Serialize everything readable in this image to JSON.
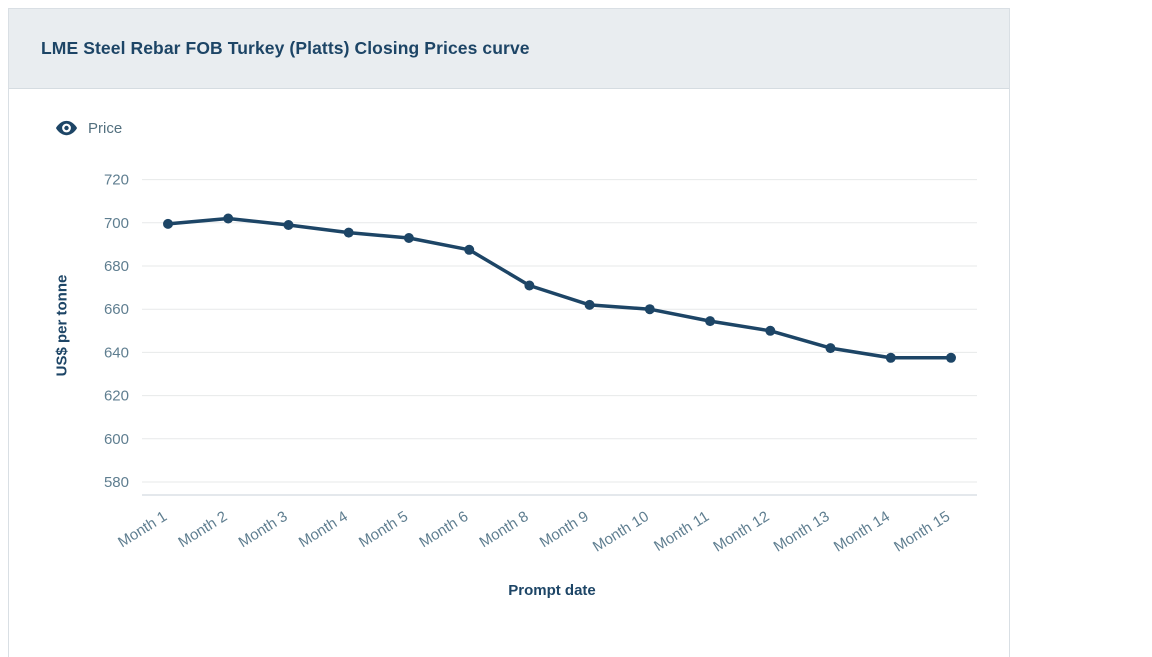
{
  "header": {
    "title": "LME Steel Rebar FOB Turkey (Platts) Closing Prices curve"
  },
  "legend": {
    "label": "Price",
    "icon": "eye-icon"
  },
  "theme": {
    "header_bg": "#e9edf0",
    "card_border": "#d9dfe4",
    "title_color": "#1d4566",
    "legend_text": "#53707f"
  },
  "chart_data": {
    "type": "line",
    "title": "LME Steel Rebar FOB Turkey (Platts) Closing Prices curve",
    "xlabel": "Prompt date",
    "ylabel": "US$ per tonne",
    "categories": [
      "Month 1",
      "Month 2",
      "Month 3",
      "Month 4",
      "Month 5",
      "Month 6",
      "Month 8",
      "Month 9",
      "Month 10",
      "Month 11",
      "Month 12",
      "Month 13",
      "Month 14",
      "Month 15"
    ],
    "series": [
      {
        "name": "Price",
        "values": [
          699.5,
          702,
          699,
          695.5,
          693,
          687.5,
          671,
          662,
          660,
          654.5,
          650,
          642,
          637.5,
          637.5
        ]
      }
    ],
    "ylim": [
      574,
      724
    ],
    "yticks": [
      580,
      600,
      620,
      640,
      660,
      680,
      700,
      720
    ],
    "grid": true,
    "legend_position": "top-left",
    "colors": {
      "line": "#1d4566",
      "grid": "#e7e9ea",
      "axis": "#c8d2d9",
      "tick_text": "#5f7e90",
      "axis_title": "#1d4566"
    }
  }
}
